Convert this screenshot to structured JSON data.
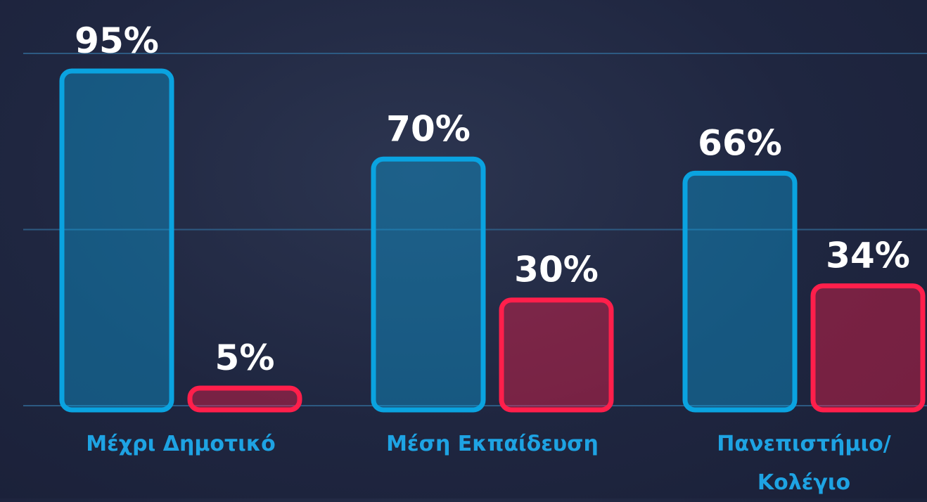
{
  "chart_data": {
    "type": "bar",
    "categories": [
      "Μέχρι Δημοτικό",
      "Μέση Εκπαίδευση",
      "Πανεπιστήμιο/ Κολέγιο"
    ],
    "series": [
      {
        "color": "#0aa3e0",
        "values": [
          95,
          70,
          66
        ],
        "value_labels": [
          "95%",
          "70%",
          "66%"
        ]
      },
      {
        "color": "#ff1f4b",
        "values": [
          5,
          30,
          34
        ],
        "value_labels": [
          "5%",
          "30%",
          "34%"
        ]
      }
    ],
    "ylim": [
      0,
      100
    ],
    "yticks": [
      0,
      50,
      100
    ],
    "grid": true
  }
}
